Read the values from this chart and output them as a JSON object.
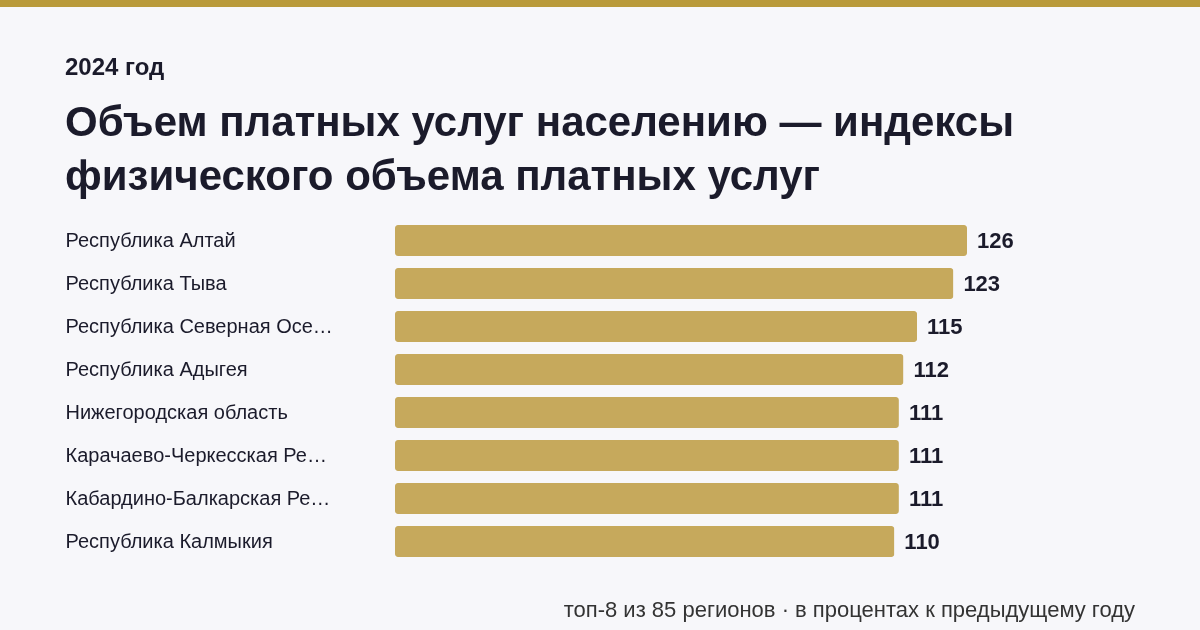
{
  "chart_data": {
    "type": "bar",
    "orientation": "horizontal",
    "title": "Объем платных услуг населению — индексы физического объема платных услуг",
    "subtitle": "2024 год",
    "categories": [
      "Республика Алтай",
      "Республика Тыва",
      "Республика Северная Осе…",
      "Республика Адыгея",
      "Нижегородская область",
      "Карачаево-Черкесская Ре…",
      "Кабардино-Балкарская Ре…",
      "Республика Калмыкия"
    ],
    "values": [
      126,
      123,
      115,
      112,
      111,
      111,
      111,
      110
    ],
    "color": "#c6a95c",
    "data_labels": true,
    "annotations": [
      "топ-8 из 85 регионов · в процентах к предыдущему году"
    ]
  }
}
